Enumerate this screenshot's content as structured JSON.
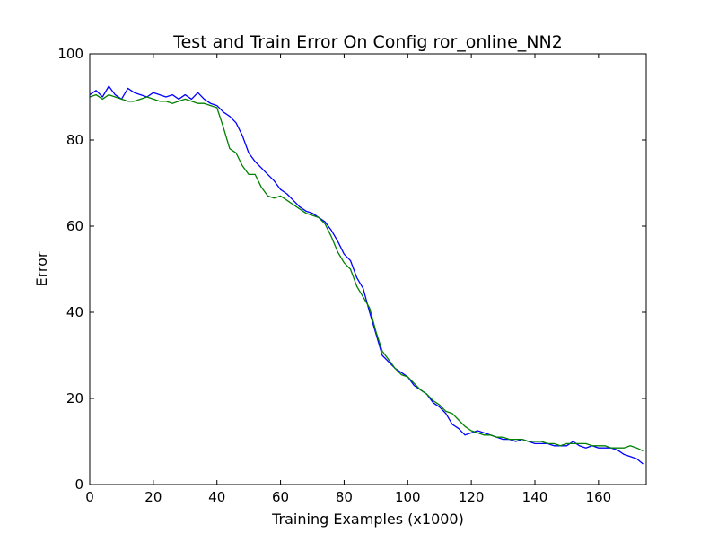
{
  "chart_data": {
    "type": "line",
    "title": "Test and Train Error On Config ror_online_NN2",
    "xlabel": "Training Examples (x1000)",
    "ylabel": "Error",
    "xlim": [
      0,
      175
    ],
    "ylim": [
      0,
      100
    ],
    "x_ticks": [
      0,
      20,
      40,
      60,
      80,
      100,
      120,
      140,
      160
    ],
    "y_ticks": [
      0,
      20,
      40,
      60,
      80,
      100
    ],
    "x_tick_labels": [
      "0",
      "20",
      "40",
      "60",
      "80",
      "100",
      "120",
      "140",
      "160"
    ],
    "y_tick_labels": [
      "0",
      "20",
      "40",
      "60",
      "80",
      "100"
    ],
    "grid": false,
    "legend": "none",
    "series": [
      {
        "color": "#0000ff",
        "x": [
          0,
          2,
          4,
          6,
          8,
          10,
          12,
          14,
          16,
          18,
          20,
          22,
          24,
          26,
          28,
          30,
          32,
          34,
          36,
          38,
          40,
          42,
          44,
          46,
          48,
          50,
          52,
          54,
          56,
          58,
          60,
          62,
          64,
          66,
          68,
          70,
          72,
          74,
          76,
          78,
          80,
          82,
          84,
          86,
          88,
          90,
          92,
          94,
          96,
          98,
          100,
          102,
          104,
          106,
          108,
          110,
          112,
          114,
          116,
          118,
          120,
          122,
          124,
          126,
          128,
          130,
          132,
          134,
          136,
          138,
          140,
          142,
          144,
          146,
          148,
          150,
          152,
          154,
          156,
          158,
          160,
          162,
          164,
          166,
          168,
          170,
          172,
          174
        ],
        "y": [
          90.5,
          91.5,
          90,
          92.5,
          90.5,
          89.5,
          92,
          91,
          90.5,
          90,
          91,
          90.5,
          90,
          90.5,
          89.5,
          90.5,
          89.5,
          91,
          89.5,
          88.5,
          88,
          86.5,
          85.5,
          84,
          81,
          77,
          75,
          73.5,
          72,
          70.5,
          68.5,
          67.5,
          66,
          64.5,
          63.5,
          63,
          62,
          61,
          59,
          56.5,
          53.5,
          52,
          48,
          45.5,
          40,
          35,
          30,
          28.5,
          27,
          26,
          25,
          23,
          22,
          21,
          19,
          18,
          16.5,
          14,
          13,
          11.5,
          12,
          12.5,
          12,
          11.5,
          11,
          10.5,
          10.5,
          10,
          10.5,
          10,
          9.5,
          9.5,
          9.5,
          9,
          9,
          9,
          10,
          9,
          8.5,
          9,
          8.5,
          8.5,
          8.5,
          8,
          7,
          6.5,
          6,
          4.8
        ]
      },
      {
        "color": "#008000",
        "x": [
          0,
          2,
          4,
          6,
          8,
          10,
          12,
          14,
          16,
          18,
          20,
          22,
          24,
          26,
          28,
          30,
          32,
          34,
          36,
          38,
          40,
          42,
          44,
          46,
          48,
          50,
          52,
          54,
          56,
          58,
          60,
          62,
          64,
          66,
          68,
          70,
          72,
          74,
          76,
          78,
          80,
          82,
          84,
          86,
          88,
          90,
          92,
          94,
          96,
          98,
          100,
          102,
          104,
          106,
          108,
          110,
          112,
          114,
          116,
          118,
          120,
          122,
          124,
          126,
          128,
          130,
          132,
          134,
          136,
          138,
          140,
          142,
          144,
          146,
          148,
          150,
          152,
          154,
          156,
          158,
          160,
          162,
          164,
          166,
          168,
          170,
          172,
          174
        ],
        "y": [
          90,
          90.5,
          89.5,
          90.5,
          90,
          89.5,
          89,
          89,
          89.5,
          90,
          89.5,
          89,
          89,
          88.5,
          89,
          89.5,
          89,
          88.5,
          88.5,
          88,
          87.5,
          83,
          78,
          77,
          74,
          72,
          72,
          69,
          67,
          66.5,
          67,
          66,
          65,
          64,
          63,
          62.5,
          62,
          60.5,
          57.5,
          54,
          51.5,
          50,
          46,
          43.5,
          41,
          35.5,
          31,
          29,
          27,
          25.5,
          25,
          23.5,
          22,
          21,
          19.5,
          18.5,
          17,
          16.5,
          15,
          13.5,
          12.5,
          12,
          11.5,
          11.5,
          11,
          11,
          10.5,
          10.5,
          10.5,
          10,
          10,
          10,
          9.5,
          9.5,
          9,
          9.5,
          9.5,
          9.5,
          9.5,
          9,
          9,
          9,
          8.5,
          8.5,
          8.5,
          9,
          8.5,
          7.8
        ]
      }
    ]
  }
}
